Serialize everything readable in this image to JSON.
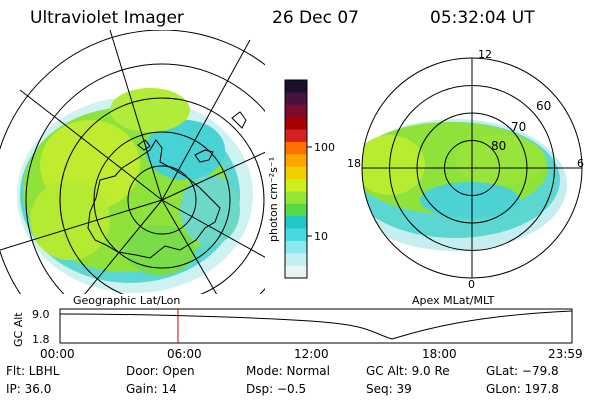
{
  "header": {
    "instrument": "Ultraviolet Imager",
    "date": "26 Dec 07",
    "time": "05:32:04 UT"
  },
  "left_panel": {
    "caption": "Geographic Lat/Lon"
  },
  "right_panel": {
    "caption": "Apex MLat/MLT",
    "mlt_labels": [
      "12",
      "18",
      "6",
      "0"
    ],
    "mlat_labels": [
      "60",
      "70",
      "80"
    ]
  },
  "colorbar": {
    "label": "photon cm⁻²s⁻¹",
    "ticks": [
      "100",
      "10"
    ],
    "colors": [
      "#1a0f2e",
      "#4a1040",
      "#7d0a2a",
      "#a80000",
      "#d42020",
      "#ff7000",
      "#ffa500",
      "#f2d000",
      "#ccef20",
      "#96e638",
      "#58d848",
      "#20c8c8",
      "#48d8e0",
      "#8ce8ee",
      "#c0f0f2",
      "#e6f4f4"
    ]
  },
  "altitude_strip": {
    "axis_label": "GC Alt",
    "y_ticks": [
      "9.0",
      "1.8"
    ],
    "x_ticks": [
      "00:00",
      "06:00",
      "12:00",
      "18:00",
      "23:59"
    ],
    "current_hour": 5.53
  },
  "footer": {
    "filter": "Flt: LBHL",
    "ip": "IP: 36.0",
    "door": "Door: Open",
    "gain": "Gain: 14",
    "mode": "Mode: Normal",
    "dsp": "Dsp:   −0.5",
    "gc_alt": "GC Alt: 9.0 Re",
    "seq": "Seq: 39",
    "glat": "GLat: −79.8",
    "glon": "GLon: 197.8"
  },
  "colors": {
    "aurora_green": "#8ee23a",
    "aurora_yellowgreen": "#c0ec30",
    "aurora_cyan": "#40d0d6",
    "aurora_pale": "#c4ecee",
    "marker_red": "#cc0000"
  }
}
